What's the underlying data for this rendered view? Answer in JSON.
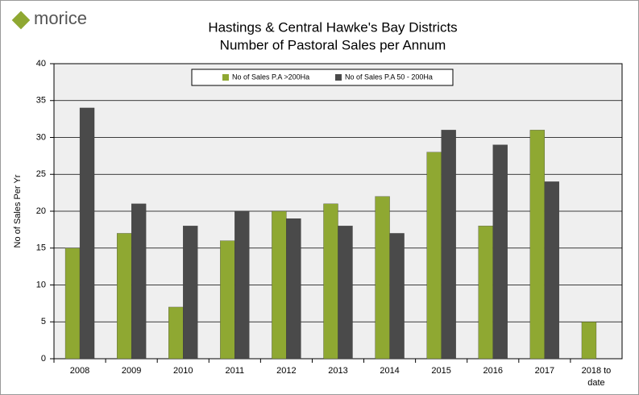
{
  "logo": "morice",
  "chart_data": {
    "type": "bar",
    "title": "Hastings & Central Hawke's Bay Districts",
    "subtitle": "Number of Pastoral Sales per Annum",
    "y_label": "No of Sales Per Yr",
    "categories": [
      "2008",
      "2009",
      "2010",
      "2011",
      "2012",
      "2013",
      "2014",
      "2015",
      "2016",
      "2017",
      "2018 to date"
    ],
    "series": [
      {
        "name": "No of Sales P.A >200Ha",
        "color": "#8fa832",
        "values": [
          15,
          17,
          7,
          16,
          20,
          21,
          22,
          28,
          18,
          31,
          5
        ]
      },
      {
        "name": "No of Sales P.A 50 - 200Ha",
        "color": "#4a4a4a",
        "values": [
          34,
          21,
          18,
          20,
          19,
          18,
          17,
          31,
          29,
          24,
          null
        ]
      }
    ],
    "ylim": [
      0,
      40
    ],
    "yticks": [
      0,
      5,
      10,
      15,
      20,
      25,
      30,
      35,
      40
    ],
    "grid": true,
    "legend": "top"
  }
}
